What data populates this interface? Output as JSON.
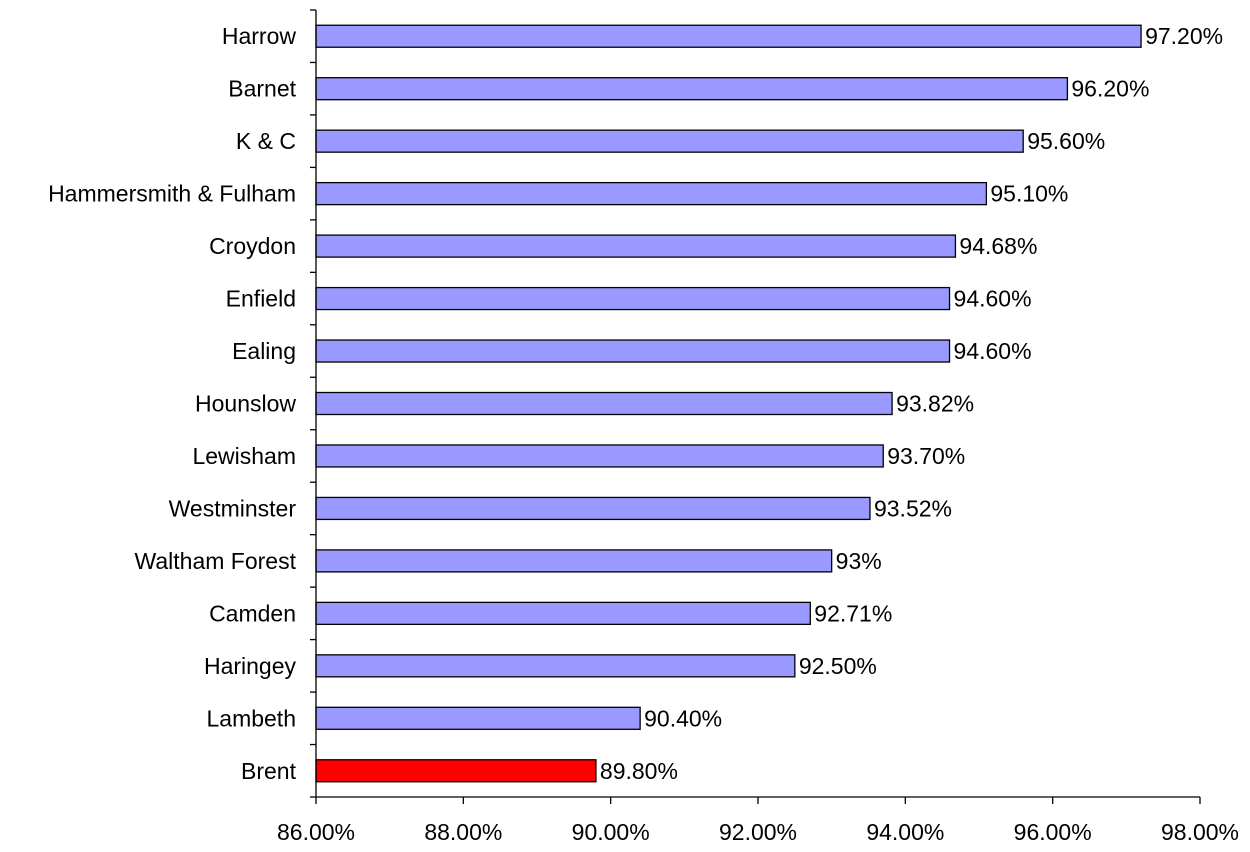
{
  "chart_data": {
    "type": "bar",
    "orientation": "horizontal",
    "categories": [
      "Harrow",
      "Barnet",
      "K & C",
      "Hammersmith & Fulham",
      "Croydon",
      "Enfield",
      "Ealing",
      "Hounslow",
      "Lewisham",
      "Westminster",
      "Waltham Forest",
      "Camden",
      "Haringey",
      "Lambeth",
      "Brent"
    ],
    "values": [
      97.2,
      96.2,
      95.6,
      95.1,
      94.68,
      94.6,
      94.6,
      93.82,
      93.7,
      93.52,
      93.0,
      92.71,
      92.5,
      90.4,
      89.8
    ],
    "data_labels": [
      "97.20%",
      "96.20%",
      "95.60%",
      "95.10%",
      "94.68%",
      "94.60%",
      "94.60%",
      "93.82%",
      "93.70%",
      "93.52%",
      "93%",
      "92.71%",
      "92.50%",
      "90.40%",
      "89.80%"
    ],
    "xlim": [
      86,
      98
    ],
    "x_ticks": [
      86,
      88,
      90,
      92,
      94,
      96,
      98
    ],
    "x_tick_labels": [
      "86.00%",
      "88.00%",
      "90.00%",
      "92.00%",
      "94.00%",
      "96.00%",
      "98.00%"
    ],
    "title": "",
    "xlabel": "",
    "ylabel": "",
    "grid": false,
    "legend": "none",
    "colors": {
      "bar": "#9999ff",
      "highlight": "#ff0000",
      "outline": "#000000",
      "axis": "#000000"
    },
    "highlight_category": "Brent"
  }
}
